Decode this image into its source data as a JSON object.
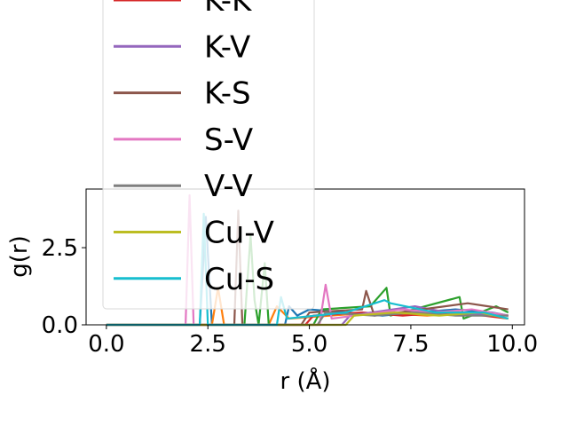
{
  "chart_data": {
    "type": "line",
    "xlabel": "r (Å)",
    "ylabel": "g(r)",
    "xlim": [
      -0.5,
      10.3
    ],
    "ylim": [
      0,
      4.4
    ],
    "x_ticks": [
      0.0,
      2.5,
      5.0,
      7.5,
      10.0
    ],
    "x_tick_labels": [
      "0.0",
      "2.5",
      "5.0",
      "7.5",
      "10.0"
    ],
    "y_ticks": [
      0.0,
      2.5
    ],
    "y_tick_labels": [
      "0.0",
      "2.5"
    ],
    "grid": false,
    "legend_placement": "upper-left, overflowing top",
    "series": [
      {
        "name": "",
        "color": "#1f77b4",
        "points": [
          [
            0,
            0
          ],
          [
            2.3,
            0
          ],
          [
            2.45,
            3.5
          ],
          [
            2.6,
            0
          ],
          [
            4.4,
            0
          ],
          [
            4.5,
            0.6
          ],
          [
            4.7,
            0.3
          ],
          [
            5.0,
            0.5
          ],
          [
            6.8,
            0.3
          ],
          [
            7.6,
            0.4
          ],
          [
            8.6,
            0.5
          ],
          [
            9.5,
            0.4
          ],
          [
            9.9,
            0.3
          ]
        ]
      },
      {
        "name": "",
        "color": "#ff7f0e",
        "points": [
          [
            0,
            0
          ],
          [
            2.6,
            0
          ],
          [
            2.75,
            1.2
          ],
          [
            2.9,
            0
          ],
          [
            4.0,
            0
          ],
          [
            4.2,
            0.6
          ],
          [
            4.5,
            0.2
          ],
          [
            6.6,
            0.4
          ],
          [
            7.9,
            0.3
          ],
          [
            9.0,
            0.4
          ],
          [
            9.9,
            0.3
          ]
        ]
      },
      {
        "name": "",
        "color": "#2ca02c",
        "points": [
          [
            0,
            0
          ],
          [
            3.4,
            0
          ],
          [
            3.55,
            2.9
          ],
          [
            3.65,
            0.8
          ],
          [
            3.75,
            0
          ],
          [
            3.9,
            2.0
          ],
          [
            4.0,
            0
          ],
          [
            5.1,
            0
          ],
          [
            5.3,
            0.5
          ],
          [
            6.5,
            0.6
          ],
          [
            6.9,
            1.2
          ],
          [
            7.0,
            0.3
          ],
          [
            8.7,
            0.9
          ],
          [
            8.8,
            0.2
          ],
          [
            9.6,
            0.6
          ],
          [
            9.9,
            0.4
          ]
        ]
      },
      {
        "name": "K-K",
        "color": "#d62728",
        "points": [
          [
            0,
            0
          ],
          [
            4.9,
            0
          ],
          [
            5.1,
            0.3
          ],
          [
            6.3,
            0.4
          ],
          [
            7.3,
            0.3
          ],
          [
            8.3,
            0.4
          ],
          [
            9.3,
            0.3
          ],
          [
            9.9,
            0.2
          ]
        ]
      },
      {
        "name": "K-V",
        "color": "#9467bd",
        "points": [
          [
            0,
            0
          ],
          [
            5.8,
            0
          ],
          [
            6.0,
            0.3
          ],
          [
            7.6,
            0.6
          ],
          [
            8.4,
            0.4
          ],
          [
            9.9,
            0.3
          ]
        ]
      },
      {
        "name": "K-S",
        "color": "#8c564b",
        "points": [
          [
            0,
            0
          ],
          [
            3.15,
            0
          ],
          [
            3.25,
            3.7
          ],
          [
            3.35,
            0
          ],
          [
            4.8,
            0
          ],
          [
            5.0,
            0.4
          ],
          [
            6.3,
            0.5
          ],
          [
            6.4,
            1.1
          ],
          [
            6.6,
            0.3
          ],
          [
            7.2,
            0.4
          ],
          [
            8.9,
            0.7
          ],
          [
            9.4,
            0.6
          ],
          [
            9.9,
            0.5
          ]
        ]
      },
      {
        "name": "S-V",
        "color": "#e377c2",
        "points": [
          [
            0,
            0
          ],
          [
            1.95,
            0
          ],
          [
            2.05,
            4.2
          ],
          [
            2.15,
            0
          ],
          [
            5.25,
            0
          ],
          [
            5.4,
            1.3
          ],
          [
            5.55,
            0.2
          ],
          [
            7.3,
            0.5
          ],
          [
            8.1,
            0.4
          ],
          [
            9.0,
            0.5
          ],
          [
            9.9,
            0.3
          ]
        ]
      },
      {
        "name": "V-V",
        "color": "#7f7f7f",
        "points": [
          [
            0,
            0
          ],
          [
            5.2,
            0
          ],
          [
            5.4,
            0.4
          ],
          [
            6.6,
            0.3
          ],
          [
            7.6,
            0.4
          ],
          [
            8.6,
            0.3
          ],
          [
            9.9,
            0.3
          ]
        ]
      },
      {
        "name": "Cu-V",
        "color": "#bcbd22",
        "points": [
          [
            0,
            0
          ],
          [
            5.9,
            0
          ],
          [
            6.1,
            0.3
          ],
          [
            7.1,
            0.4
          ],
          [
            8.2,
            0.3
          ],
          [
            9.2,
            0.4
          ],
          [
            9.9,
            0.2
          ]
        ]
      },
      {
        "name": "Cu-S",
        "color": "#17becf",
        "points": [
          [
            0,
            0
          ],
          [
            2.3,
            0
          ],
          [
            2.4,
            3.6
          ],
          [
            2.5,
            0
          ],
          [
            4.2,
            0
          ],
          [
            4.3,
            0.9
          ],
          [
            4.45,
            0.2
          ],
          [
            5.9,
            0.4
          ],
          [
            6.85,
            0.8
          ],
          [
            7.0,
            0.7
          ],
          [
            8.1,
            0.4
          ],
          [
            9.3,
            0.4
          ],
          [
            9.9,
            0.2
          ]
        ]
      }
    ],
    "legend_entries": [
      {
        "label": "K-K",
        "color": "#d62728"
      },
      {
        "label": "K-V",
        "color": "#9467bd"
      },
      {
        "label": "K-S",
        "color": "#8c564b"
      },
      {
        "label": "S-V",
        "color": "#e377c2"
      },
      {
        "label": "V-V",
        "color": "#7f7f7f"
      },
      {
        "label": "Cu-V",
        "color": "#bcbd22"
      },
      {
        "label": "Cu-S",
        "color": "#17becf"
      }
    ]
  }
}
